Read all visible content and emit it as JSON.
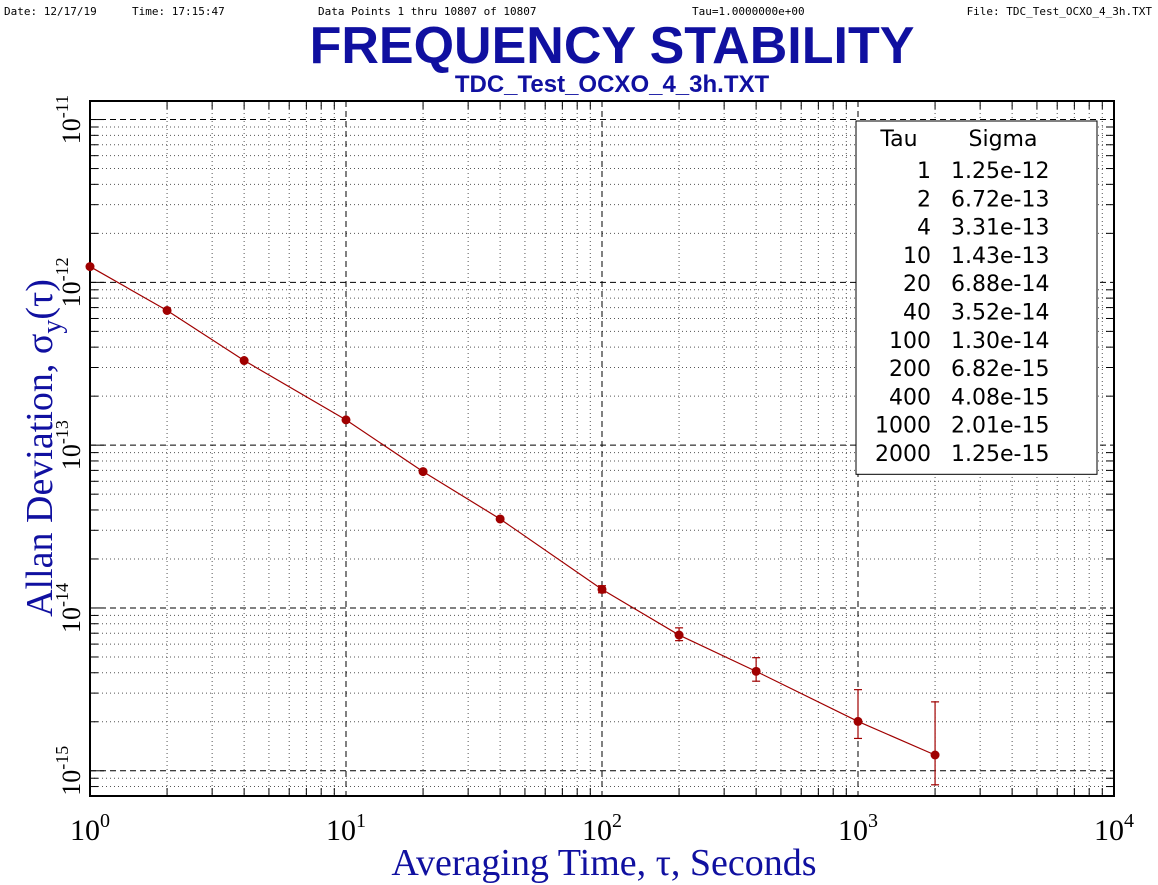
{
  "header": {
    "date": "Date: 12/17/19",
    "time": "Time: 17:15:47",
    "points": "Data Points 1 thru 10807 of 10807",
    "tau": "Tau=1.0000000e+00",
    "file": "File: TDC_Test_OCXO_4_3h.TXT"
  },
  "chart_data": {
    "type": "scatter",
    "title": "FREQUENCY STABILITY",
    "subtitle": "TDC_Test_OCXO_4_3h.TXT",
    "xlabel": "Averaging Time, τ, Seconds",
    "ylabel_main": "Allan Deviation, σ",
    "ylabel_sub": "y",
    "ylabel_tail": "(τ)",
    "xscale": "log",
    "yscale": "log",
    "xlim": [
      1,
      10000
    ],
    "ylim": [
      7e-16,
      1.3e-11
    ],
    "grid": true,
    "x_ticks": [
      {
        "value": 1,
        "base": "10",
        "exp": "0"
      },
      {
        "value": 10,
        "base": "10",
        "exp": "1"
      },
      {
        "value": 100,
        "base": "10",
        "exp": "2"
      },
      {
        "value": 1000,
        "base": "10",
        "exp": "3"
      },
      {
        "value": 10000,
        "base": "10",
        "exp": "4"
      }
    ],
    "y_ticks": [
      {
        "value": 1e-11,
        "base": "10",
        "exp": "-11"
      },
      {
        "value": 1e-12,
        "base": "10",
        "exp": "-12"
      },
      {
        "value": 1e-13,
        "base": "10",
        "exp": "-13"
      },
      {
        "value": 1e-14,
        "base": "10",
        "exp": "-14"
      },
      {
        "value": 1e-15,
        "base": "10",
        "exp": "-15"
      }
    ],
    "series": [
      {
        "color": "#a00000",
        "x": [
          1,
          2,
          4,
          10,
          20,
          40,
          100,
          200,
          400,
          1000,
          2000
        ],
        "y": [
          1.25e-12,
          6.72e-13,
          3.31e-13,
          1.43e-13,
          6.88e-14,
          3.52e-14,
          1.3e-14,
          6.82e-15,
          4.08e-15,
          2.01e-15,
          1.25e-15
        ],
        "err_low": [
          1.25e-12,
          6.72e-13,
          3.31e-13,
          1.43e-13,
          6.88e-14,
          3.45e-14,
          1.24e-14,
          6.3e-15,
          3.55e-15,
          1.58e-15,
          8.2e-16
        ],
        "err_high": [
          1.25e-12,
          6.72e-13,
          3.31e-13,
          1.43e-13,
          6.88e-14,
          3.6e-14,
          1.37e-14,
          7.55e-15,
          4.95e-15,
          3.15e-15,
          2.65e-15
        ]
      }
    ],
    "legend": {
      "position": "top-right",
      "headers": [
        "Tau",
        "Sigma"
      ],
      "rows": [
        [
          "1",
          "1.25e-12"
        ],
        [
          "2",
          "6.72e-13"
        ],
        [
          "4",
          "3.31e-13"
        ],
        [
          "10",
          "1.43e-13"
        ],
        [
          "20",
          "6.88e-14"
        ],
        [
          "40",
          "3.52e-14"
        ],
        [
          "100",
          "1.30e-14"
        ],
        [
          "200",
          "6.82e-15"
        ],
        [
          "400",
          "4.08e-15"
        ],
        [
          "1000",
          "2.01e-15"
        ],
        [
          "2000",
          "1.25e-15"
        ]
      ]
    }
  }
}
